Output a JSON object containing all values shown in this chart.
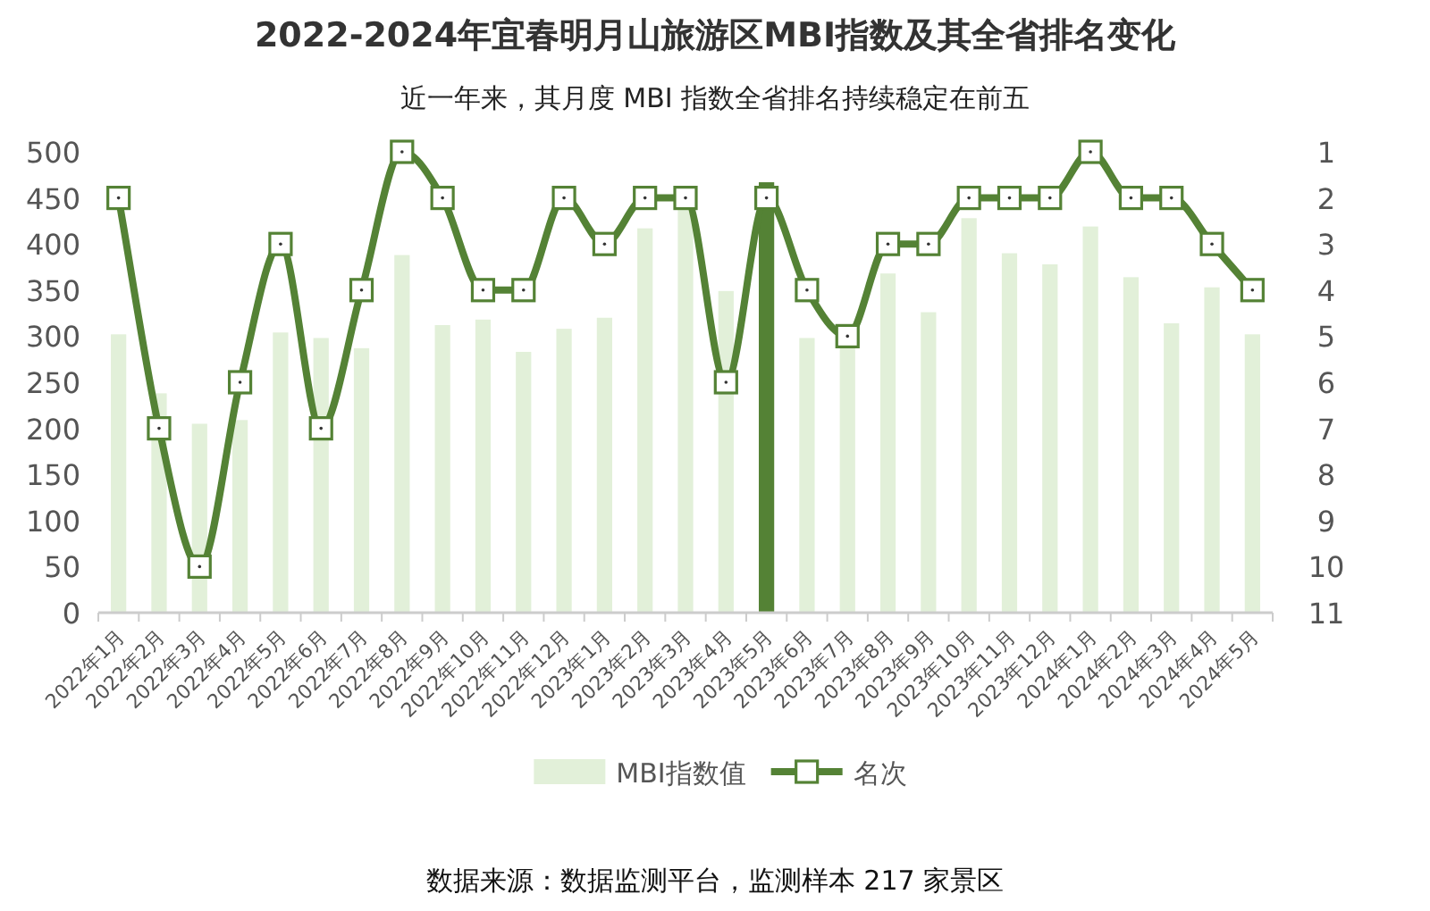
{
  "chart_data": {
    "type": "bar",
    "title": "2022-2024年宜春明月山旅游区MBI指数及其全省排名变化",
    "subtitle": "近一年来，其月度 MBI 指数全省排名持续稳定在前五",
    "categories": [
      "2022年1月",
      "2022年2月",
      "2022年3月",
      "2022年4月",
      "2022年5月",
      "2022年6月",
      "2022年7月",
      "2022年8月",
      "2022年9月",
      "2022年10月",
      "2022年11月",
      "2022年12月",
      "2023年1月",
      "2023年2月",
      "2023年3月",
      "2023年4月",
      "2023年5月",
      "2023年6月",
      "2023年7月",
      "2023年8月",
      "2023年9月",
      "2023年10月",
      "2023年11月",
      "2023年12月",
      "2024年1月",
      "2024年2月",
      "2024年3月",
      "2024年4月",
      "2024年5月"
    ],
    "series": [
      {
        "name": "MBI指数值",
        "color": "#e2f0d9",
        "colors": [
          "#e2f0d9",
          "#e2f0d9",
          "#e2f0d9",
          "#e2f0d9",
          "#e2f0d9",
          "#e2f0d9",
          "#e2f0d9",
          "#e2f0d9",
          "#e2f0d9",
          "#e2f0d9",
          "#e2f0d9",
          "#e2f0d9",
          "#e2f0d9",
          "#e2f0d9",
          "#e2f0d9",
          "#e2f0d9",
          "#548235",
          "#e2f0d9",
          "#e2f0d9",
          "#e2f0d9",
          "#e2f0d9",
          "#e2f0d9",
          "#e2f0d9",
          "#e2f0d9",
          "#e2f0d9",
          "#e2f0d9",
          "#e2f0d9",
          "#e2f0d9",
          "#e2f0d9"
        ],
        "values": [
          302,
          238,
          205,
          209,
          304,
          298,
          287,
          388,
          312,
          318,
          283,
          308,
          320,
          417,
          440,
          349,
          467,
          298,
          290,
          368,
          326,
          428,
          390,
          378,
          419,
          364,
          314,
          353,
          302
        ]
      },
      {
        "name": "名次",
        "type": "line",
        "axis": "y2",
        "color": "#548235",
        "marker": "square",
        "values": [
          2,
          7,
          10,
          6,
          3,
          7,
          4,
          1,
          2,
          4,
          4,
          2,
          3,
          2,
          2,
          6,
          2,
          4,
          5,
          3,
          3,
          2,
          2,
          2,
          1,
          2,
          2,
          3,
          4
        ]
      }
    ],
    "ylim": [
      0,
      500
    ],
    "yticks": [
      0,
      50,
      100,
      150,
      200,
      250,
      300,
      350,
      400,
      450,
      500
    ],
    "y2lim": [
      11,
      1
    ],
    "y2ticks": [
      1,
      2,
      3,
      4,
      5,
      6,
      7,
      8,
      9,
      10,
      11
    ],
    "grid": false,
    "legend": "bottom",
    "annotations": [
      "数据来源：数据监测平台，监测样本 217 家景区"
    ]
  }
}
